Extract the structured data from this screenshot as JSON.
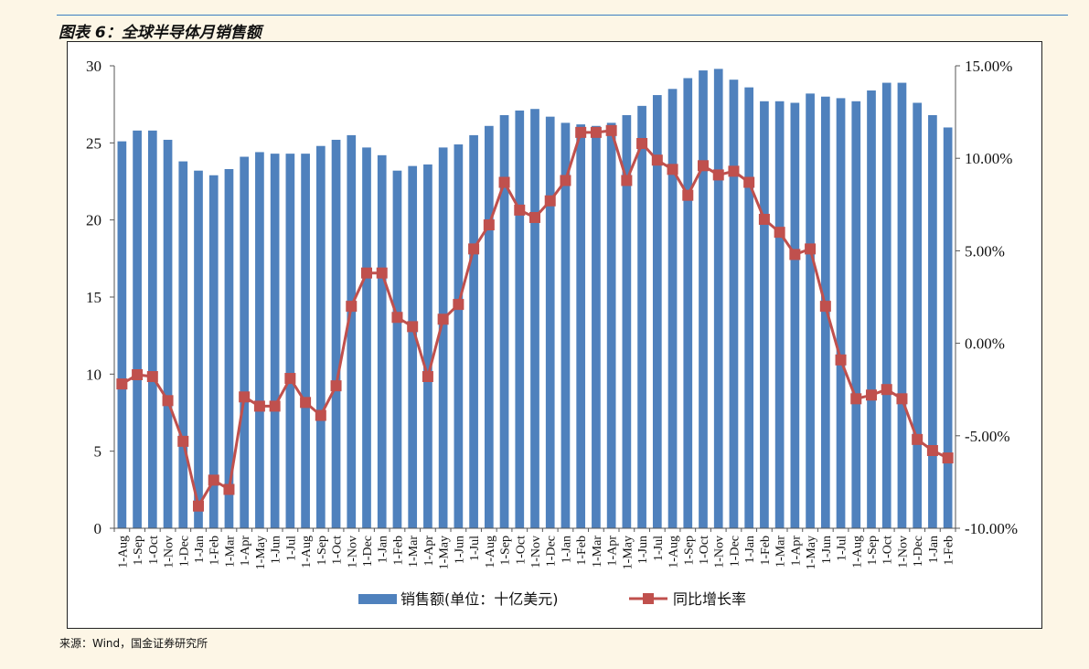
{
  "header": {
    "title": "图表 6：全球半导体月销售额"
  },
  "footer": {
    "source": "来源：Wind，国金证券研究所"
  },
  "colors": {
    "bar": "#4f81bd",
    "line": "#c0504d",
    "rule": "#3a7fc1"
  },
  "chart_data": {
    "type": "bar",
    "title": "",
    "categories": [
      "1-Aug",
      "1-Sep",
      "1-Oct",
      "1-Nov",
      "1-Dec",
      "1-Jan",
      "1-Feb",
      "1-Mar",
      "1-Apr",
      "1-May",
      "1-Jun",
      "1-Jul",
      "1-Aug",
      "1-Sep",
      "1-Oct",
      "1-Nov",
      "1-Dec",
      "1-Jan",
      "1-Feb",
      "1-Mar",
      "1-Apr",
      "1-May",
      "1-Jun",
      "1-Jul",
      "1-Aug",
      "1-Sep",
      "1-Oct",
      "1-Nov",
      "1-Dec",
      "1-Jan",
      "1-Feb",
      "1-Mar",
      "1-Apr",
      "1-May",
      "1-Jun",
      "1-Jul",
      "1-Aug",
      "1-Sep",
      "1-Oct",
      "1-Nov",
      "1-Dec",
      "1-Jan",
      "1-Feb",
      "1-Mar",
      "1-Apr",
      "1-May",
      "1-Jun",
      "1-Jul",
      "1-Aug",
      "1-Sep",
      "1-Oct",
      "1-Nov",
      "1-Dec",
      "1-Jan",
      "1-Feb"
    ],
    "series": [
      {
        "name": "销售额(单位：十亿美元)",
        "kind": "bar",
        "axis": "left",
        "values": [
          25.1,
          25.8,
          25.8,
          25.2,
          23.8,
          23.2,
          22.9,
          23.3,
          24.1,
          24.4,
          24.3,
          24.3,
          24.3,
          24.8,
          25.2,
          25.5,
          24.7,
          24.2,
          23.2,
          23.5,
          23.6,
          24.7,
          24.9,
          25.5,
          26.1,
          26.8,
          27.1,
          27.2,
          26.7,
          26.3,
          26.2,
          26.1,
          26.3,
          26.8,
          27.4,
          28.1,
          28.5,
          29.2,
          29.7,
          29.8,
          29.1,
          28.6,
          27.7,
          27.7,
          27.6,
          28.2,
          28.0,
          27.9,
          27.7,
          28.4,
          28.9,
          28.9,
          27.6,
          26.8,
          26.0
        ]
      },
      {
        "name": "同比增长率",
        "kind": "line",
        "axis": "right",
        "values": [
          -2.2,
          -1.7,
          -1.8,
          -3.1,
          -5.3,
          -8.8,
          -7.4,
          -7.9,
          -2.9,
          -3.4,
          -3.4,
          -1.9,
          -3.2,
          -3.9,
          -2.3,
          2.0,
          3.8,
          3.8,
          1.4,
          0.9,
          -1.8,
          1.3,
          2.1,
          5.1,
          6.4,
          8.7,
          7.2,
          6.8,
          7.7,
          8.8,
          11.4,
          11.4,
          11.5,
          8.8,
          10.8,
          9.9,
          9.4,
          8.0,
          9.6,
          9.1,
          9.3,
          8.7,
          6.7,
          6.0,
          4.8,
          5.1,
          2.0,
          -0.9,
          -3.0,
          -2.8,
          -2.5,
          -3.0,
          -5.2,
          -5.8,
          -6.2
        ]
      }
    ],
    "y_left": {
      "lim": [
        0,
        30
      ],
      "ticks": [
        "0",
        "5",
        "10",
        "15",
        "20",
        "25",
        "30"
      ]
    },
    "y_right": {
      "lim": [
        -10,
        15
      ],
      "ticks": [
        "-10.00%",
        "-5.00%",
        "0.00%",
        "5.00%",
        "10.00%",
        "15.00%"
      ]
    },
    "legend": {
      "position": "bottom",
      "entries": [
        "销售额(单位：十亿美元)",
        "同比增长率"
      ]
    },
    "grid": false
  }
}
